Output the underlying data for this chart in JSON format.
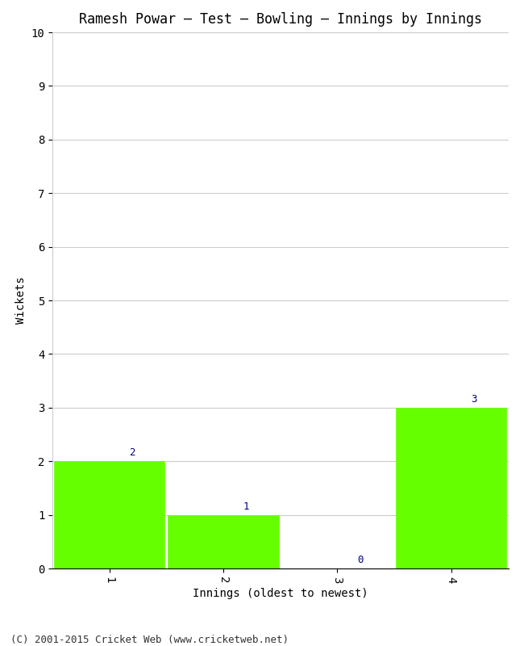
{
  "title": "Ramesh Powar – Test – Bowling – Innings by Innings",
  "xlabel": "Innings (oldest to newest)",
  "ylabel": "Wickets",
  "categories": [
    "1",
    "2",
    "3",
    "4"
  ],
  "values": [
    2,
    1,
    0,
    3
  ],
  "bar_color": "#66ff00",
  "bar_labels": [
    "2",
    "1",
    "0",
    "3"
  ],
  "label_color": "#000080",
  "ylim": [
    0,
    10
  ],
  "yticks": [
    0,
    1,
    2,
    3,
    4,
    5,
    6,
    7,
    8,
    9,
    10
  ],
  "background_color": "#ffffff",
  "grid_color": "#cccccc",
  "footer": "(C) 2001-2015 Cricket Web (www.cricketweb.net)",
  "title_fontsize": 12,
  "axis_label_fontsize": 10,
  "tick_fontsize": 10,
  "bar_label_fontsize": 9,
  "footer_fontsize": 9,
  "figsize": [
    6.5,
    8.0
  ],
  "dpi": 100
}
